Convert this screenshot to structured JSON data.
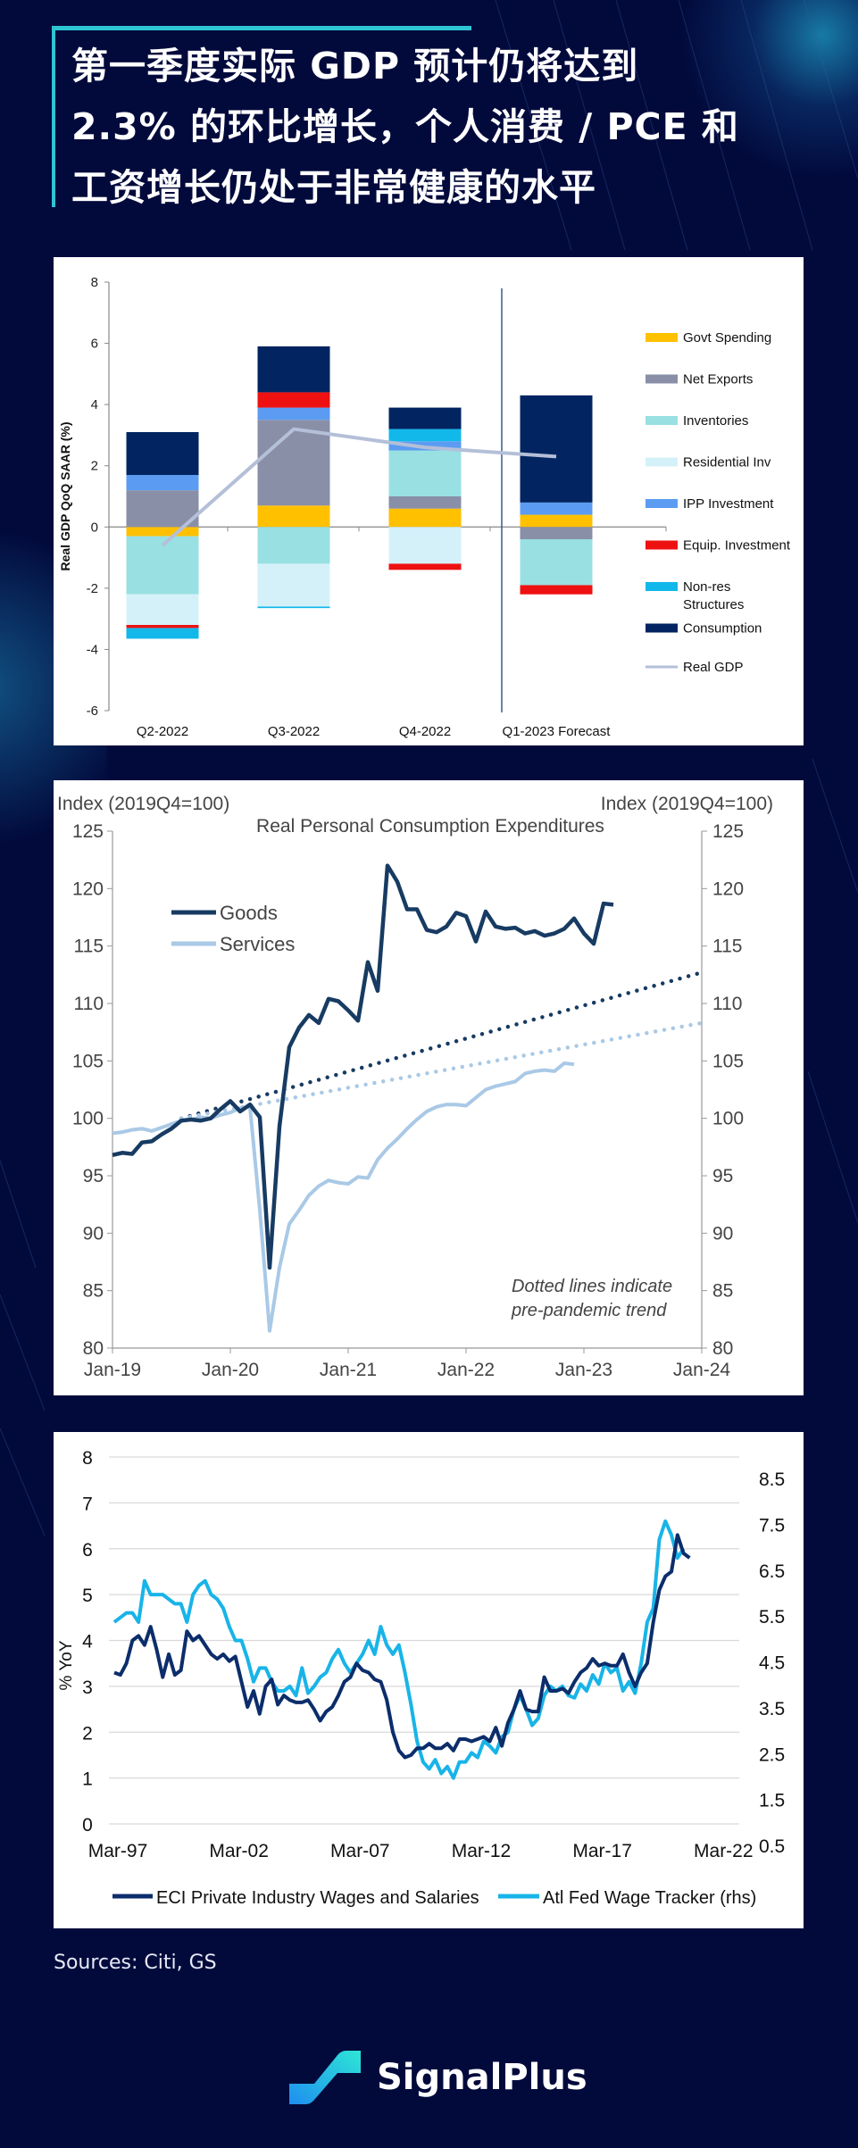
{
  "header": {
    "title_lines": [
      "第一季度实际 GDP 预计仍将达到",
      "2.3% 的环比增长，个人消费 / PCE 和",
      "工资增长仍处于非常健康的水平"
    ],
    "accent_color": "#2ec5d3"
  },
  "footer": {
    "sources": "Sources: Citi, GS",
    "brand_name": "SignalPlus",
    "brand_icon": "signalplus-logo-icon"
  },
  "chart_data": [
    {
      "type": "bar",
      "stacked": true,
      "title": "",
      "xlabel": "",
      "ylabel": "Real GDP QoQ SAAR (%)",
      "ylim": [
        -6,
        8
      ],
      "yticks": [
        8,
        6,
        4,
        2,
        0,
        -2,
        -4,
        -6
      ],
      "categories": [
        "Q2-2022",
        "Q3-2022",
        "Q4-2022",
        "Q1-2023 Forecast"
      ],
      "forecast_divider_after": "Q4-2022",
      "legend_position": "right",
      "series": [
        {
          "name": "Govt Spending",
          "color": "#ffc000",
          "values": [
            -0.3,
            0.7,
            0.6,
            0.4
          ]
        },
        {
          "name": "Net Exports",
          "color": "#8a8fa8",
          "values": [
            1.2,
            2.8,
            0.4,
            -0.4
          ]
        },
        {
          "name": "Inventories",
          "color": "#99e0e2",
          "values": [
            -1.9,
            -1.2,
            1.5,
            -1.5
          ]
        },
        {
          "name": "Residential Inv",
          "color": "#d4f1fa",
          "values": [
            -1.0,
            -1.4,
            -1.2,
            0.0
          ]
        },
        {
          "name": "IPP Investment",
          "color": "#5b9cf2",
          "values": [
            0.5,
            0.4,
            0.3,
            0.4
          ]
        },
        {
          "name": "Equip. Investment",
          "color": "#ee1111",
          "values": [
            -0.1,
            0.5,
            -0.2,
            -0.3
          ]
        },
        {
          "name": "Non-res Structures",
          "color": "#12b8ea",
          "values": [
            -0.35,
            -0.05,
            0.4,
            0.0
          ]
        },
        {
          "name": "Consumption",
          "color": "#022561",
          "values": [
            1.4,
            1.5,
            0.7,
            3.5
          ]
        }
      ],
      "line": {
        "name": "Real GDP",
        "color": "#b4bfd8",
        "values": [
          -0.6,
          3.2,
          2.6,
          2.3
        ]
      }
    },
    {
      "type": "line",
      "title": "Real Personal Consumption Expenditures",
      "ylabel_left": "Index (2019Q4=100)",
      "ylabel_right": "Index (2019Q4=100)",
      "ylim": [
        80,
        125
      ],
      "yticks": [
        125,
        120,
        115,
        110,
        105,
        100,
        95,
        90,
        85,
        80
      ],
      "xlim": [
        "Jan-19",
        "Jan-24"
      ],
      "xticks": [
        "Jan-19",
        "Jan-20",
        "Jan-21",
        "Jan-22",
        "Jan-23",
        "Jan-24"
      ],
      "legend_position": "top-left",
      "annotation": [
        "Dotted lines indicate",
        "pre-pandemic  trend"
      ],
      "series": [
        {
          "name": "Goods",
          "color": "#173b62",
          "style": "solid",
          "x_start": "Jan-19",
          "values": [
            96.8,
            97.0,
            96.9,
            97.9,
            98.0,
            98.6,
            99.1,
            99.8,
            99.9,
            99.8,
            100.0,
            100.8,
            101.5,
            100.6,
            101.2,
            100.1,
            87.0,
            99.3,
            106.2,
            107.9,
            109.0,
            108.3,
            110.4,
            110.2,
            109.4,
            108.5,
            113.6,
            111.1,
            122.0,
            120.6,
            118.2,
            118.2,
            116.4,
            116.2,
            116.7,
            117.9,
            117.6,
            115.4,
            118.0,
            116.7,
            116.5,
            116.6,
            116.1,
            116.3,
            115.9,
            116.1,
            116.5,
            117.4,
            116.1,
            115.2,
            118.7,
            118.6
          ]
        },
        {
          "name": "Services",
          "color": "#a9c9e6",
          "style": "solid",
          "x_start": "Jan-19",
          "values": [
            98.7,
            98.8,
            99.0,
            99.1,
            98.9,
            99.2,
            99.5,
            99.8,
            99.9,
            100.1,
            100.0,
            100.3,
            100.5,
            100.9,
            101.0,
            92.0,
            81.5,
            87.0,
            90.8,
            92.0,
            93.3,
            94.1,
            94.6,
            94.4,
            94.3,
            94.9,
            94.8,
            96.4,
            97.4,
            98.2,
            99.1,
            99.9,
            100.6,
            101.0,
            101.2,
            101.2,
            101.1,
            101.8,
            102.5,
            102.8,
            103.0,
            103.2,
            103.9,
            104.1,
            104.2,
            104.1,
            104.8,
            104.7
          ]
        },
        {
          "name": "Goods pre-pandemic trend",
          "color": "#173b62",
          "style": "dotted",
          "from": [
            "Aug-19",
            100.0
          ],
          "to": [
            "Jan-24",
            112.7
          ]
        },
        {
          "name": "Services pre-pandemic trend",
          "color": "#a9c9e6",
          "style": "dotted",
          "from": [
            "Aug-19",
            100.0
          ],
          "to": [
            "Jan-24",
            108.3
          ]
        }
      ]
    },
    {
      "type": "line",
      "title": "",
      "ylabel": "% YoY",
      "ylim_left": [
        0,
        8
      ],
      "ylim_right": [
        0.5,
        8.5
      ],
      "yticks_left": [
        8,
        7,
        6,
        5,
        4,
        3,
        2,
        1,
        0
      ],
      "yticks_right": [
        8.5,
        7.5,
        6.5,
        5.5,
        4.5,
        3.5,
        2.5,
        1.5,
        0.5
      ],
      "xticks": [
        "Mar-97",
        "Mar-02",
        "Mar-07",
        "Mar-12",
        "Mar-17",
        "Mar-22"
      ],
      "x_range_years": [
        1997.2,
        2023.0
      ],
      "grid": true,
      "legend_position": "bottom",
      "series": [
        {
          "name": "ECI Private Industry Wages and Salaries",
          "color": "#0c2d6b",
          "axis": "left",
          "x_start": 1997.2,
          "x_step": 0.25,
          "values": [
            3.3,
            3.25,
            3.5,
            4.0,
            4.1,
            3.9,
            4.3,
            3.8,
            3.2,
            3.7,
            3.25,
            3.35,
            4.2,
            4.0,
            4.1,
            3.9,
            3.7,
            3.6,
            3.7,
            3.55,
            3.65,
            3.1,
            2.55,
            2.9,
            2.4,
            3.0,
            3.15,
            2.6,
            2.8,
            2.7,
            2.65,
            2.65,
            2.7,
            2.5,
            2.25,
            2.45,
            2.55,
            2.8,
            3.1,
            3.2,
            3.5,
            3.35,
            3.3,
            3.15,
            3.1,
            2.7,
            2.0,
            1.6,
            1.45,
            1.5,
            1.65,
            1.65,
            1.75,
            1.65,
            1.65,
            1.75,
            1.6,
            1.85,
            1.85,
            1.8,
            1.85,
            1.9,
            1.8,
            2.1,
            1.7,
            2.2,
            2.5,
            2.9,
            2.5,
            2.45,
            2.45,
            3.2,
            2.9,
            2.9,
            2.95,
            2.85,
            3.1,
            3.3,
            3.4,
            3.6,
            3.45,
            3.5,
            3.45,
            3.45,
            3.7,
            3.3,
            3.0,
            3.3,
            3.5,
            4.4,
            5.1,
            5.4,
            5.5,
            6.3,
            5.9,
            5.8
          ]
        },
        {
          "name": "Atl Fed Wage Tracker (rhs)",
          "color": "#18b4e8",
          "axis": "right",
          "x_start": 1997.2,
          "x_step": 0.25,
          "values": [
            4.9,
            5.0,
            5.1,
            5.1,
            4.9,
            5.8,
            5.5,
            5.5,
            5.5,
            5.4,
            5.3,
            5.3,
            4.9,
            5.5,
            5.7,
            5.8,
            5.5,
            5.4,
            5.2,
            4.8,
            4.5,
            4.5,
            4.1,
            3.6,
            3.9,
            3.9,
            3.6,
            3.4,
            3.4,
            3.5,
            3.3,
            3.9,
            3.35,
            3.5,
            3.7,
            3.8,
            4.1,
            4.3,
            4.0,
            3.8,
            4.0,
            4.2,
            4.5,
            4.2,
            4.8,
            4.4,
            4.2,
            4.4,
            3.8,
            3.1,
            2.3,
            1.85,
            1.7,
            1.9,
            1.6,
            1.75,
            1.5,
            1.85,
            1.85,
            2.05,
            1.95,
            2.3,
            2.2,
            2.05,
            2.4,
            2.5,
            3.0,
            3.3,
            3.0,
            2.65,
            2.8,
            3.3,
            3.5,
            3.4,
            3.5,
            3.3,
            3.25,
            3.55,
            3.4,
            3.75,
            3.55,
            4.0,
            3.8,
            3.9,
            3.4,
            3.6,
            3.35,
            4.0,
            4.9,
            5.2,
            6.7,
            7.1,
            6.8,
            6.3,
            6.5
          ]
        }
      ]
    }
  ]
}
